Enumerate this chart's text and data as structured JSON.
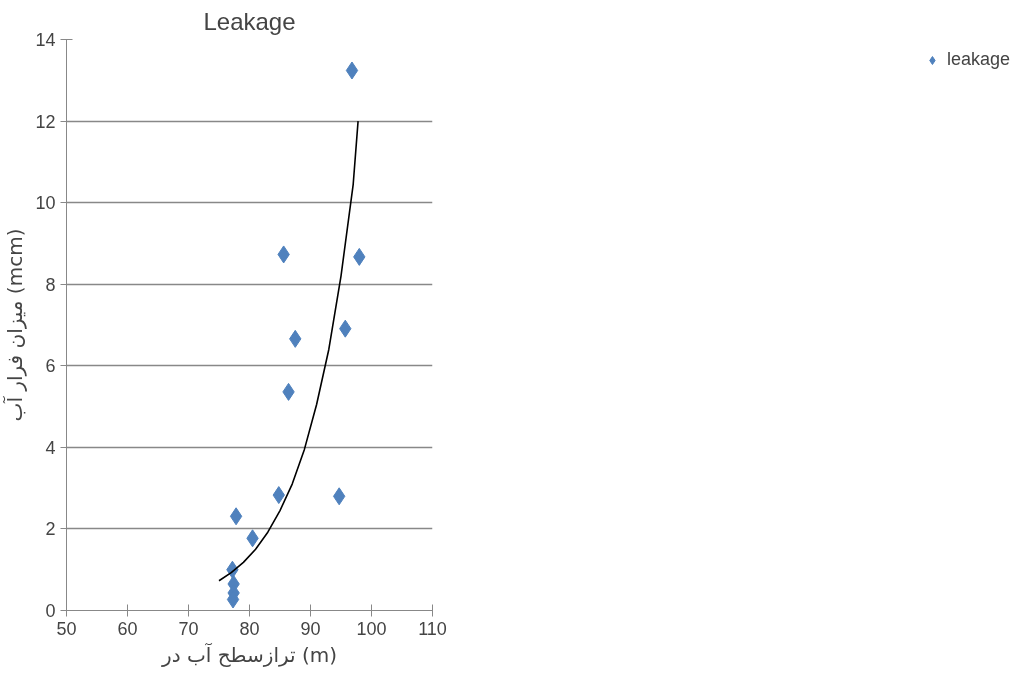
{
  "chart_data": {
    "type": "scatter",
    "title": "Leakage",
    "xlabel": "ترازسطح آب در (m)",
    "ylabel": "میزان فرار آب (mcm)",
    "xlim": [
      50,
      110
    ],
    "xticks": [
      50,
      60,
      70,
      80,
      90,
      100,
      110
    ],
    "ylim": [
      0,
      14
    ],
    "yticks": [
      0,
      2,
      4,
      6,
      8,
      10,
      12,
      14
    ],
    "grid": "y",
    "legend": "right",
    "marker": "diamond",
    "series": [
      {
        "name": "leakage",
        "color": "#4f81bd",
        "x": [
          96.8,
          85.6,
          98.0,
          87.5,
          95.7,
          86.4,
          84.8,
          94.7,
          77.8,
          80.5,
          77.2,
          77.4,
          77.4,
          77.3
        ],
        "values": [
          13.24,
          8.73,
          8.67,
          6.66,
          6.91,
          5.36,
          2.83,
          2.8,
          2.31,
          1.77,
          1.0,
          0.65,
          0.43,
          0.27
        ]
      },
      {
        "type": "line",
        "color": "#000000",
        "marker": "none",
        "x": [
          75,
          77,
          79,
          81,
          83,
          85,
          87,
          89,
          91,
          93,
          95,
          97,
          97.8
        ],
        "values": [
          0.73,
          0.93,
          1.18,
          1.5,
          1.92,
          2.45,
          3.1,
          3.95,
          5.05,
          6.4,
          8.2,
          10.45,
          12.0
        ]
      }
    ]
  }
}
